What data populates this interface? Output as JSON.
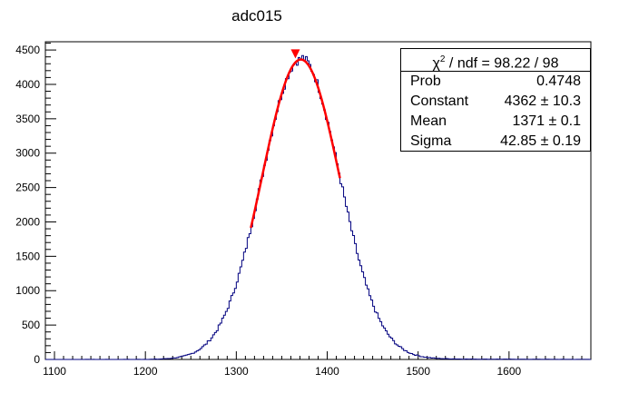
{
  "chart_data": {
    "type": "histogram",
    "title": "adc015",
    "xlabel": "",
    "ylabel": "",
    "xlim": [
      1090,
      1690
    ],
    "ylim": [
      0,
      4620
    ],
    "xticks": [
      1100,
      1200,
      1300,
      1400,
      1500,
      1600
    ],
    "yticks": [
      0,
      500,
      1000,
      1500,
      2000,
      2500,
      3000,
      3500,
      4000,
      4500
    ],
    "histogram": {
      "name": "adc015",
      "color": "#00007f",
      "model": "gaussian",
      "constant": 4362,
      "mean": 1371,
      "sigma": 42.85,
      "bin_width": 2,
      "baseline_peak": 30,
      "baseline_slope": 0.01
    },
    "fit": {
      "color": "#ff0000",
      "function": "gaussian",
      "range": [
        1316,
        1414
      ],
      "constant": 4362,
      "mean": 1371,
      "sigma": 42.85
    },
    "peak_marker": {
      "x": 1365,
      "y": 4430,
      "color": "#ff0000"
    },
    "stats_box": {
      "header": "χ² / ndf = 98.22 / 98",
      "header_parts": {
        "chi": "χ",
        "sup": "2",
        "rest": " / ndf = 98.22 / 98"
      },
      "rows": [
        {
          "label": "Prob",
          "value": "0.4748"
        },
        {
          "label": "Constant",
          "value": "4362 ± 10.3"
        },
        {
          "label": "Mean",
          "value": "1371 ± 0.1"
        },
        {
          "label": "Sigma",
          "value": "42.85 ± 0.19"
        }
      ]
    }
  }
}
